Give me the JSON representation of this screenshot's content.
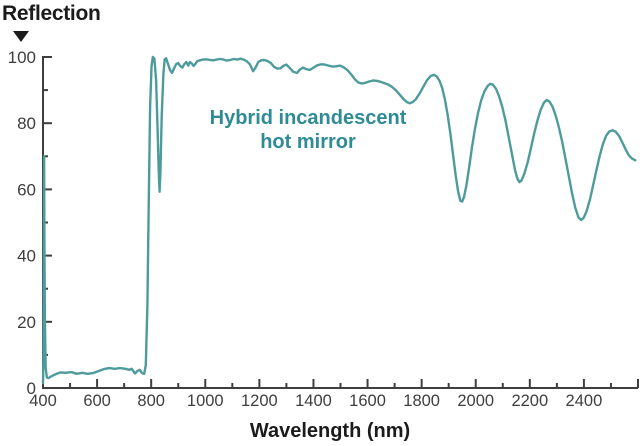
{
  "chart_data": {
    "type": "line",
    "ylabel": "Reflection",
    "xlabel": "Wavelength (nm)",
    "annotation_line1": "Hybrid incandescent",
    "annotation_line2": "hot mirror",
    "x_range": [
      400,
      2600
    ],
    "y_range": [
      0,
      100
    ],
    "x_minor_step": 100,
    "x_major_step": 200,
    "y_minor_step": 10,
    "y_major_step": 20,
    "x_tick_labels": [
      400,
      600,
      800,
      1000,
      1200,
      1400,
      1600,
      1800,
      2000,
      2200,
      2400
    ],
    "y_tick_labels": [
      0,
      20,
      40,
      60,
      80,
      100
    ],
    "grid": "off",
    "legend": "none",
    "icons": {
      "y_axis_pointer": "down-triangle-icon"
    },
    "colors": {
      "curve": "#4e9b9b",
      "annotation_text": "#2f8b96",
      "axis": "#3e3e3e",
      "tick_text": "#3e3e3e",
      "title_text": "#1b1b1b",
      "background": "#ffffff"
    },
    "series": [
      {
        "name": "Hybrid incandescent hot mirror",
        "points": [
          [
            400,
            1.5
          ],
          [
            402,
            10
          ],
          [
            404,
            70
          ],
          [
            405,
            45
          ],
          [
            407,
            20
          ],
          [
            410,
            6
          ],
          [
            414,
            3.2
          ],
          [
            420,
            3.0
          ],
          [
            430,
            3.5
          ],
          [
            445,
            4.1
          ],
          [
            465,
            4.7
          ],
          [
            485,
            4.6
          ],
          [
            505,
            4.8
          ],
          [
            525,
            4.3
          ],
          [
            545,
            4.6
          ],
          [
            565,
            4.3
          ],
          [
            585,
            4.5
          ],
          [
            605,
            5.1
          ],
          [
            625,
            5.7
          ],
          [
            645,
            6.0
          ],
          [
            665,
            5.8
          ],
          [
            685,
            6.0
          ],
          [
            705,
            5.8
          ],
          [
            718,
            5.5
          ],
          [
            728,
            5.8
          ],
          [
            740,
            4.4
          ],
          [
            750,
            5.2
          ],
          [
            758,
            5.5
          ],
          [
            766,
            4.5
          ],
          [
            774,
            4.3
          ],
          [
            780,
            7
          ],
          [
            786,
            25
          ],
          [
            791,
            55
          ],
          [
            796,
            85
          ],
          [
            801,
            97
          ],
          [
            806,
            100
          ],
          [
            812,
            99.5
          ],
          [
            818,
            93
          ],
          [
            823,
            80
          ],
          [
            828,
            65
          ],
          [
            831,
            59.3
          ],
          [
            834,
            65
          ],
          [
            839,
            82
          ],
          [
            845,
            95
          ],
          [
            850,
            99.3
          ],
          [
            855,
            99.6
          ],
          [
            862,
            98
          ],
          [
            870,
            96
          ],
          [
            877,
            95.2
          ],
          [
            884,
            96.5
          ],
          [
            893,
            97.9
          ],
          [
            900,
            98.2
          ],
          [
            907,
            97.3
          ],
          [
            915,
            96.8
          ],
          [
            922,
            97.8
          ],
          [
            930,
            98.5
          ],
          [
            937,
            97.4
          ],
          [
            943,
            98.5
          ],
          [
            950,
            98.0
          ],
          [
            957,
            97.3
          ],
          [
            963,
            97.9
          ],
          [
            970,
            98.7
          ],
          [
            980,
            99.0
          ],
          [
            992,
            99.2
          ],
          [
            1005,
            99.3
          ],
          [
            1018,
            99.1
          ],
          [
            1030,
            99.0
          ],
          [
            1042,
            99.2
          ],
          [
            1055,
            99.4
          ],
          [
            1068,
            99.2
          ],
          [
            1080,
            98.9
          ],
          [
            1092,
            99.1
          ],
          [
            1105,
            99.4
          ],
          [
            1118,
            99.2
          ],
          [
            1130,
            99.5
          ],
          [
            1142,
            99.2
          ],
          [
            1155,
            98.6
          ],
          [
            1165,
            97.8
          ],
          [
            1177,
            95.7
          ],
          [
            1186,
            96.8
          ],
          [
            1196,
            98.5
          ],
          [
            1207,
            99.0
          ],
          [
            1218,
            99.1
          ],
          [
            1230,
            98.8
          ],
          [
            1242,
            98.2
          ],
          [
            1255,
            97.0
          ],
          [
            1266,
            96.5
          ],
          [
            1278,
            96.6
          ],
          [
            1290,
            97.4
          ],
          [
            1300,
            97.7
          ],
          [
            1312,
            96.7
          ],
          [
            1326,
            95.5
          ],
          [
            1339,
            95.2
          ],
          [
            1350,
            96.2
          ],
          [
            1361,
            96.8
          ],
          [
            1374,
            96.3
          ],
          [
            1387,
            96.1
          ],
          [
            1400,
            96.8
          ],
          [
            1414,
            97.5
          ],
          [
            1428,
            97.8
          ],
          [
            1442,
            97.7
          ],
          [
            1456,
            97.4
          ],
          [
            1470,
            97.1
          ],
          [
            1484,
            97.2
          ],
          [
            1498,
            97.4
          ],
          [
            1512,
            96.9
          ],
          [
            1526,
            96.0
          ],
          [
            1540,
            94.7
          ],
          [
            1554,
            93.2
          ],
          [
            1566,
            92.3
          ],
          [
            1578,
            92.0
          ],
          [
            1592,
            92.2
          ],
          [
            1606,
            92.6
          ],
          [
            1620,
            92.9
          ],
          [
            1634,
            92.8
          ],
          [
            1648,
            92.5
          ],
          [
            1662,
            92.1
          ],
          [
            1676,
            91.7
          ],
          [
            1690,
            91.0
          ],
          [
            1704,
            90.0
          ],
          [
            1718,
            88.7
          ],
          [
            1732,
            87.4
          ],
          [
            1745,
            86.4
          ],
          [
            1756,
            86.0
          ],
          [
            1766,
            86.3
          ],
          [
            1778,
            87.2
          ],
          [
            1792,
            88.9
          ],
          [
            1806,
            91.0
          ],
          [
            1820,
            93.0
          ],
          [
            1834,
            94.3
          ],
          [
            1846,
            94.6
          ],
          [
            1856,
            94.1
          ],
          [
            1866,
            92.8
          ],
          [
            1876,
            90.6
          ],
          [
            1886,
            87.2
          ],
          [
            1896,
            82.6
          ],
          [
            1906,
            77.0
          ],
          [
            1916,
            70.6
          ],
          [
            1926,
            64.2
          ],
          [
            1935,
            59.4
          ],
          [
            1943,
            56.6
          ],
          [
            1950,
            56.3
          ],
          [
            1957,
            57.8
          ],
          [
            1966,
            61.4
          ],
          [
            1976,
            66.8
          ],
          [
            1986,
            72.6
          ],
          [
            1997,
            78.2
          ],
          [
            2008,
            82.9
          ],
          [
            2020,
            86.8
          ],
          [
            2032,
            89.6
          ],
          [
            2044,
            91.2
          ],
          [
            2054,
            91.9
          ],
          [
            2064,
            91.6
          ],
          [
            2075,
            90.4
          ],
          [
            2086,
            88.2
          ],
          [
            2098,
            85.0
          ],
          [
            2110,
            80.8
          ],
          [
            2122,
            75.8
          ],
          [
            2134,
            70.6
          ],
          [
            2145,
            66.0
          ],
          [
            2154,
            63.2
          ],
          [
            2162,
            62.2
          ],
          [
            2170,
            62.8
          ],
          [
            2180,
            64.8
          ],
          [
            2192,
            68.2
          ],
          [
            2204,
            72.4
          ],
          [
            2216,
            76.8
          ],
          [
            2228,
            80.8
          ],
          [
            2240,
            84.0
          ],
          [
            2252,
            86.2
          ],
          [
            2262,
            87.0
          ],
          [
            2272,
            86.6
          ],
          [
            2284,
            85.0
          ],
          [
            2296,
            82.2
          ],
          [
            2308,
            78.6
          ],
          [
            2320,
            74.2
          ],
          [
            2332,
            69.2
          ],
          [
            2344,
            64.0
          ],
          [
            2356,
            58.9
          ],
          [
            2368,
            54.4
          ],
          [
            2380,
            51.5
          ],
          [
            2390,
            50.8
          ],
          [
            2399,
            51.4
          ],
          [
            2410,
            53.4
          ],
          [
            2422,
            56.9
          ],
          [
            2434,
            61.2
          ],
          [
            2446,
            65.8
          ],
          [
            2458,
            70.0
          ],
          [
            2470,
            73.6
          ],
          [
            2482,
            76.2
          ],
          [
            2494,
            77.5
          ],
          [
            2506,
            77.9
          ],
          [
            2518,
            77.4
          ],
          [
            2530,
            76.1
          ],
          [
            2542,
            74.2
          ],
          [
            2554,
            72.1
          ],
          [
            2566,
            70.3
          ],
          [
            2578,
            69.3
          ],
          [
            2590,
            68.8
          ]
        ]
      }
    ]
  }
}
